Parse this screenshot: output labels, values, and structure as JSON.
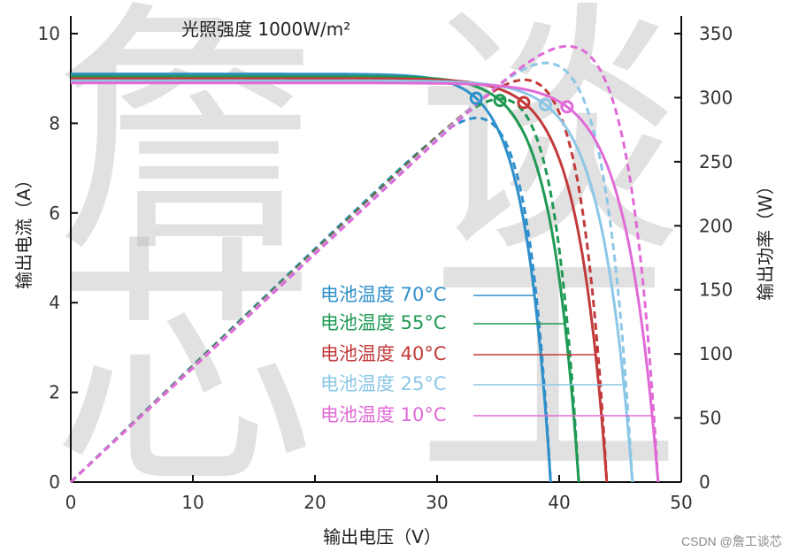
{
  "chart_data": {
    "type": "line",
    "title": "光照强度 1000W/m²",
    "xlabel": "输出电压（V）",
    "ylabel_left": "输出电流（A）",
    "ylabel_right": "输出功率（W）",
    "xlim": [
      0,
      50
    ],
    "ylim_left": [
      0,
      10
    ],
    "ylim_right": [
      0,
      350
    ],
    "x_ticks": [
      "0",
      "10",
      "20",
      "30",
      "40",
      "50"
    ],
    "y_left_ticks": [
      "0",
      "2",
      "4",
      "6",
      "8",
      "10"
    ],
    "y_right_ticks": [
      "0",
      "50",
      "100",
      "150",
      "200",
      "250",
      "300",
      "350"
    ],
    "series": [
      {
        "name": "电池温度 70°C",
        "color": "#2f8fca",
        "isc": 9.1,
        "voc": 39.3,
        "vmp": 32.2,
        "imp": 8.1
      },
      {
        "name": "电池温度 55°C",
        "color": "#1f9a55",
        "isc": 9.05,
        "voc": 41.6,
        "vmp": 34.5,
        "imp": 8.1
      },
      {
        "name": "电池温度 40°C",
        "color": "#c23a3a",
        "isc": 9.0,
        "voc": 43.9,
        "vmp": 36.6,
        "imp": 8.1
      },
      {
        "name": "电池温度 25°C",
        "color": "#8cc7e6",
        "isc": 8.95,
        "voc": 46.0,
        "vmp": 38.5,
        "imp": 8.1
      },
      {
        "name": "电池温度 10°C",
        "color": "#e06ad6",
        "isc": 8.9,
        "voc": 48.1,
        "vmp": 40.7,
        "imp": 8.1
      }
    ],
    "grid": false,
    "legend": "center"
  },
  "credit": "CSDN @詹工谈芯",
  "watermark": [
    "詹",
    "谈",
    "芯",
    "工"
  ]
}
